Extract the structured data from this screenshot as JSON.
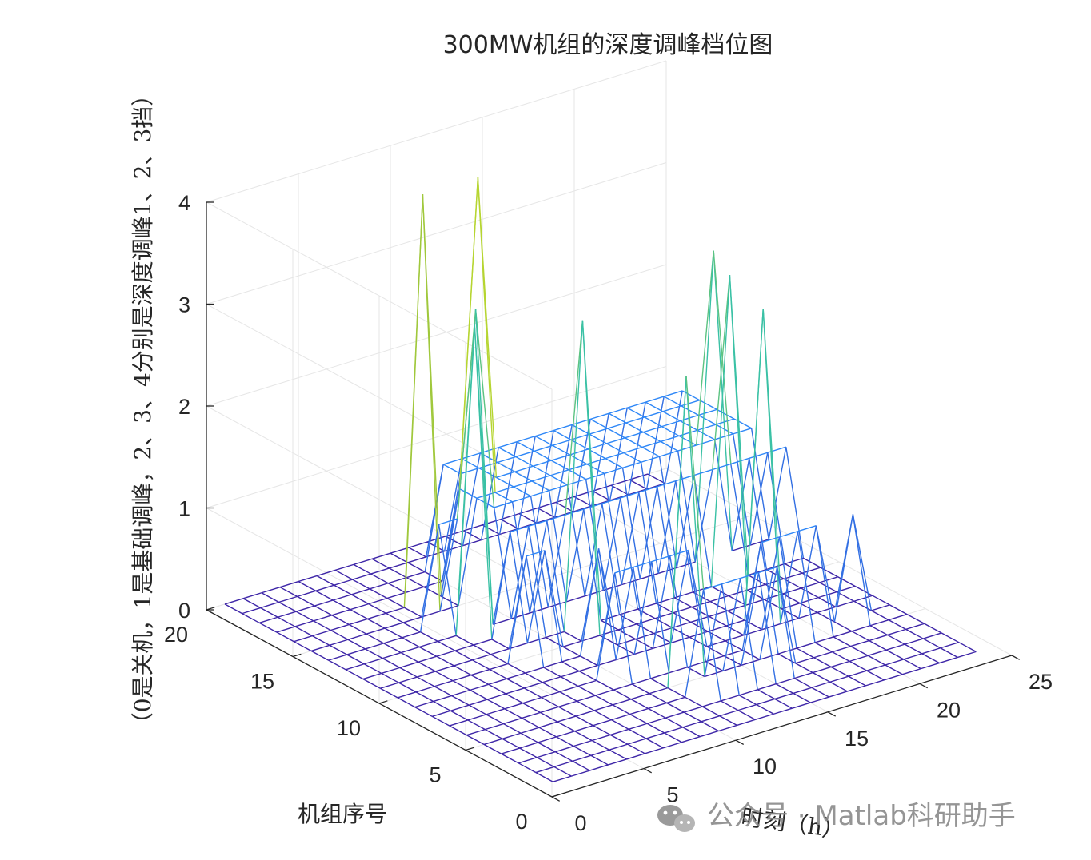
{
  "chart_data": {
    "type": "mesh3d",
    "title": "300MW机组的深度调峰档位图",
    "xlabel": "时刻（h）",
    "ylabel": "机组序号",
    "zlabel": "（0是关机，1是基础调峰，2、3、4分别是深度调峰1、2、3挡）",
    "xlim": [
      0,
      25
    ],
    "ylim": [
      0,
      20
    ],
    "zlim": [
      0,
      4
    ],
    "xticks": [
      "0",
      "5",
      "10",
      "15",
      "20",
      "25"
    ],
    "yticks": [
      "0",
      "5",
      "10",
      "15",
      "20"
    ],
    "zticks": [
      "0",
      "1",
      "2",
      "3",
      "4"
    ],
    "grid": true,
    "colormap": "parula",
    "rows": [
      {
        "unit": 1,
        "levels": [
          0,
          0,
          0,
          0,
          0,
          0,
          0,
          0,
          0,
          0,
          0,
          0,
          0,
          0,
          0,
          0,
          0,
          0,
          0,
          0,
          0,
          0,
          0,
          0
        ]
      },
      {
        "unit": 2,
        "levels": [
          0,
          0,
          0,
          0,
          0,
          0,
          0,
          0,
          0,
          0,
          0,
          0,
          0,
          0,
          0,
          0,
          0,
          0,
          0,
          0,
          0,
          0,
          0,
          0
        ]
      },
      {
        "unit": 3,
        "levels": [
          0,
          0,
          0,
          0,
          0,
          0,
          0,
          0,
          0,
          0,
          0,
          0,
          0,
          0,
          0,
          0,
          0,
          0,
          0,
          0,
          0,
          0,
          0,
          0
        ]
      },
      {
        "unit": 4,
        "levels": [
          0,
          0,
          0,
          0,
          0,
          0,
          0,
          0,
          0,
          0,
          0,
          1,
          1,
          1,
          1,
          1,
          0,
          0,
          0,
          0,
          0,
          0,
          0,
          0
        ]
      },
      {
        "unit": 5,
        "levels": [
          0,
          0,
          0,
          0,
          0,
          0,
          0,
          0,
          0,
          0,
          0,
          3,
          0,
          0,
          0,
          0,
          0,
          0,
          0,
          0,
          0,
          0,
          0,
          0
        ]
      },
      {
        "unit": 6,
        "levels": [
          0,
          0,
          0,
          0,
          0,
          0,
          0,
          0,
          0,
          0,
          0,
          0,
          0,
          0,
          0,
          0,
          1,
          1,
          1,
          1,
          0,
          1,
          0,
          0
        ]
      },
      {
        "unit": 7,
        "levels": [
          0,
          0,
          0,
          0,
          0,
          0,
          0,
          0,
          0,
          1,
          1,
          1,
          1,
          1,
          0,
          0,
          0,
          0,
          0,
          0,
          0,
          0,
          0,
          0
        ]
      },
      {
        "unit": 8,
        "levels": [
          0,
          0,
          0,
          0,
          0,
          0,
          0,
          0,
          0,
          0,
          0,
          0,
          0,
          0,
          0,
          0,
          0,
          0,
          3,
          0,
          0,
          0,
          0,
          0
        ]
      },
      {
        "unit": 9,
        "levels": [
          0,
          0,
          0,
          0,
          0,
          0,
          0,
          0,
          0,
          0,
          1,
          0,
          0,
          0,
          0,
          0,
          0,
          0,
          0,
          0,
          0,
          0,
          0,
          0
        ]
      },
      {
        "unit": 10,
        "levels": [
          0,
          0,
          0,
          0,
          0,
          0,
          0,
          1,
          1,
          0,
          0,
          0,
          0,
          0,
          0,
          0,
          0,
          0,
          0,
          0,
          0,
          0,
          0,
          0
        ]
      },
      {
        "unit": 11,
        "levels": [
          0,
          0,
          0,
          0,
          0,
          0,
          0,
          0,
          0,
          0,
          0,
          3,
          0,
          0,
          0,
          0,
          0,
          0,
          0,
          3,
          0,
          0,
          0,
          0
        ]
      },
      {
        "unit": 12,
        "levels": [
          0,
          0,
          0,
          0,
          0,
          0,
          0,
          0,
          1,
          1,
          1,
          1,
          1,
          1,
          1,
          1,
          1,
          1,
          1,
          1,
          1,
          1,
          1,
          1
        ]
      },
      {
        "unit": 13,
        "levels": [
          0,
          0,
          0,
          0,
          0,
          0,
          0,
          3,
          0,
          0,
          0,
          0,
          0,
          0,
          0,
          0,
          0,
          0,
          0,
          0,
          3,
          0,
          0,
          0
        ]
      },
      {
        "unit": 14,
        "levels": [
          0,
          0,
          0,
          0,
          0,
          0,
          1,
          1,
          3,
          1,
          1,
          1,
          1,
          1,
          1,
          1,
          1,
          1,
          1,
          1,
          1,
          1,
          1,
          1
        ]
      },
      {
        "unit": 15,
        "levels": [
          0,
          0,
          0,
          0,
          0,
          0,
          0,
          0,
          0,
          1,
          1,
          1,
          1,
          1,
          1,
          1,
          1,
          1,
          1,
          1,
          1,
          1,
          1,
          1
        ]
      },
      {
        "unit": 16,
        "levels": [
          0,
          0,
          0,
          0,
          0,
          0,
          0,
          4,
          0,
          1,
          4,
          1,
          1,
          1,
          1,
          1,
          1,
          1,
          1,
          1,
          1,
          1,
          1,
          1
        ]
      },
      {
        "unit": 17,
        "levels": [
          0,
          0,
          0,
          0,
          0,
          0,
          0,
          0,
          0,
          0,
          1,
          1,
          1,
          1,
          1,
          1,
          1,
          1,
          1,
          1,
          1,
          1,
          1,
          1
        ]
      },
      {
        "unit": 18,
        "levels": [
          0,
          0,
          0,
          0,
          0,
          0,
          0,
          0,
          0,
          0,
          1,
          1,
          1,
          1,
          1,
          1,
          1,
          1,
          1,
          1,
          1,
          1,
          1,
          1
        ]
      },
      {
        "unit": 19,
        "levels": [
          0,
          0,
          0,
          0,
          0,
          0,
          0,
          0,
          0,
          0,
          0,
          0,
          0,
          0,
          0,
          0,
          0,
          0,
          0,
          0,
          0,
          0,
          0,
          0
        ]
      },
      {
        "unit": 20,
        "levels": [
          0,
          0,
          0,
          0,
          0,
          0,
          0,
          0,
          0,
          0,
          0,
          0,
          0,
          0,
          0,
          0,
          0,
          0,
          0,
          0,
          0,
          0,
          0,
          0
        ]
      }
    ]
  },
  "watermark": {
    "text": "公众号 · Matlab科研助手",
    "icon": "wechat-icon"
  }
}
